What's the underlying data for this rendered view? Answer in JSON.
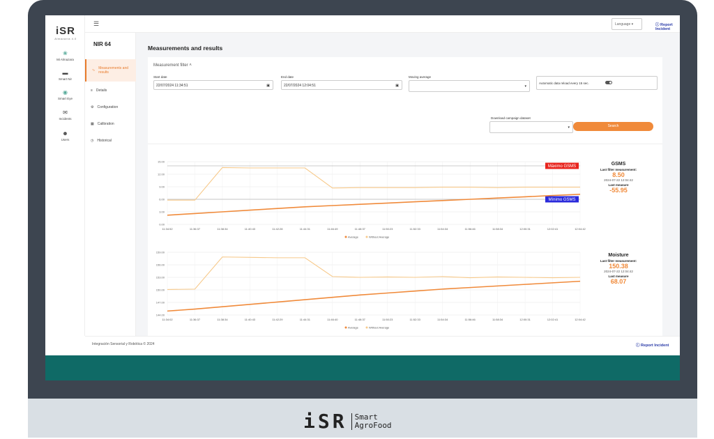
{
  "logo": {
    "brand": "iSR",
    "tagline": "Almazarra 4.0"
  },
  "rail": [
    {
      "label": "Mi Almazara",
      "icon": "leaf-icon"
    },
    {
      "label": "Smart Nir",
      "icon": "sensor-icon"
    },
    {
      "label": "Smart Eye",
      "icon": "eye-icon"
    },
    {
      "label": "Incidents",
      "icon": "mail-icon"
    },
    {
      "label": "Users",
      "icon": "users-icon"
    }
  ],
  "topbar": {
    "language": "Language",
    "report": "Report Incident"
  },
  "subnav": {
    "title": "NIR 64",
    "items": [
      {
        "label": "Measurements and results",
        "icon": "pulse-icon"
      },
      {
        "label": "Details",
        "icon": "list-icon"
      },
      {
        "label": "Configuration",
        "icon": "gear-icon"
      },
      {
        "label": "Calibration",
        "icon": "grid-icon"
      },
      {
        "label": "Historical",
        "icon": "clock-icon"
      }
    ]
  },
  "page": {
    "title": "Measurements and results"
  },
  "filter": {
    "heading": "Measurement filter",
    "start_label": "Start date",
    "start_value": "22/07/2024 11:34:51",
    "end_label": "End date",
    "end_value": "22/07/2024 12:04:51",
    "moving_label": "Moving average",
    "auto_label": "Automatic data reload every 15 sec.",
    "download_label": "Download campaign dataset",
    "search": "Search"
  },
  "charts": {
    "gsms": {
      "name": "GSMS",
      "last_filter_label": "Last filter measurement:",
      "last_filter_value": "8.50",
      "timestamp": "2024-07-22 12:04:42",
      "last_measure_label": "Last measure",
      "last_measure_value": "-55.95",
      "max_label": "Máximo GSMS",
      "min_label": "Mínimo GSMS"
    },
    "moisture": {
      "name": "Moisture",
      "last_filter_label": "Last filter measurement:",
      "last_filter_value": "150.38",
      "timestamp": "2024-07-22 12:04:42",
      "last_measure_label": "Last measure",
      "last_measure_value": "68.07"
    }
  },
  "chart_data": [
    {
      "type": "line",
      "x": [
        "11:34:52",
        "11:36:37",
        "11:38:34",
        "11:40:43",
        "11:42:28",
        "11:44:31",
        "11:46:49",
        "11:48:37",
        "11:50:23",
        "11:52:33",
        "11:54:34",
        "11:56:46",
        "11:58:34",
        "12:00:31",
        "12:02:41",
        "12:04:42"
      ],
      "ylim": [
        0,
        15
      ],
      "yticks": [
        "0.00",
        "3.00",
        "6.00",
        "9.00",
        "12.00",
        "15.00"
      ],
      "series": [
        {
          "name": "Average",
          "color": "#f08a3a",
          "values": [
            2.2,
            2.6,
            3.0,
            3.4,
            3.8,
            4.2,
            4.5,
            4.8,
            5.1,
            5.4,
            5.7,
            6.0,
            6.3,
            6.6,
            6.9,
            7.2
          ]
        },
        {
          "name": "Without Average",
          "color": "#f7c98a",
          "values": [
            5.8,
            5.8,
            13.6,
            13.5,
            13.5,
            13.5,
            8.7,
            8.8,
            8.8,
            8.8,
            8.9,
            8.9,
            8.8,
            8.9,
            8.9,
            8.9
          ]
        }
      ],
      "thresholds": [
        {
          "value": 14.0,
          "color": "#e8241d"
        },
        {
          "value": 6.0,
          "color": "#2a2adb"
        }
      ],
      "legend": "bottom"
    },
    {
      "type": "line",
      "x": [
        "11:34:02",
        "11:36:37",
        "11:38:34",
        "11:40:43",
        "11:42:29",
        "11:44:31",
        "11:46:40",
        "11:48:37",
        "11:50:23",
        "11:52:33",
        "11:54:34",
        "11:56:46",
        "11:58:34",
        "12:00:31",
        "12:02:41",
        "12:04:42"
      ],
      "ylim": [
        144,
        160
      ],
      "yticks": [
        "144.00",
        "147.00",
        "150.00",
        "153.00",
        "156.00",
        "159.00"
      ],
      "series": [
        {
          "name": "Average",
          "color": "#f08a3a",
          "values": [
            145.0,
            145.5,
            146.1,
            146.7,
            147.3,
            147.9,
            148.5,
            149.1,
            149.6,
            150.1,
            150.6,
            151.0,
            151.4,
            151.8,
            152.2,
            152.6
          ]
        },
        {
          "name": "Without Average",
          "color": "#f7c98a",
          "values": [
            150.5,
            150.6,
            158.8,
            158.7,
            158.6,
            158.6,
            153.8,
            153.6,
            153.7,
            153.6,
            153.8,
            153.5,
            153.7,
            153.6,
            153.5,
            153.6
          ]
        }
      ],
      "legend": "bottom"
    }
  ],
  "footer": {
    "copyright": "Integración Sensorial y Robótica © 2024",
    "report": "Report Incident"
  },
  "base": {
    "brand": "iSR",
    "line1": "Smart",
    "line2": "AgroFood"
  }
}
